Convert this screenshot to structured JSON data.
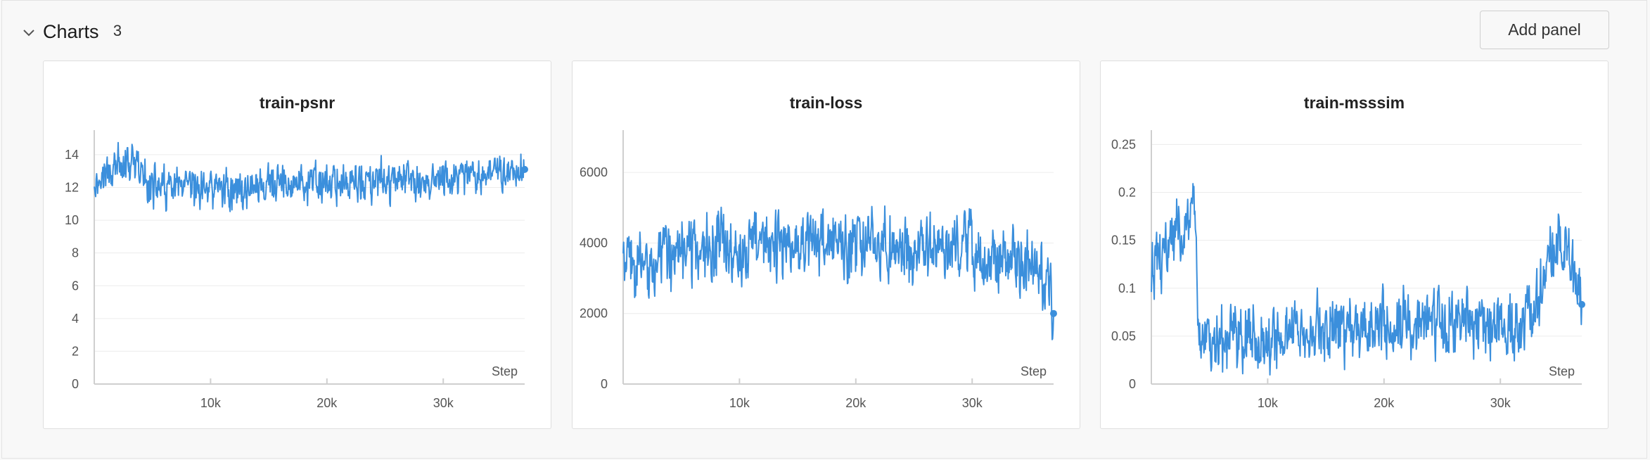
{
  "section": {
    "title": "Charts",
    "count": "3",
    "add_panel_label": "Add panel"
  },
  "colors": {
    "line": "#3b8fdc",
    "grid": "#ececec",
    "axis": "#cfcfcf"
  },
  "icons": {
    "collapse": "chevron-down-icon"
  },
  "chart_data": [
    {
      "type": "line",
      "title": "train-psnr",
      "xlabel": "Step",
      "ylabel": "",
      "xlim": [
        0,
        37000
      ],
      "ylim": [
        0,
        15.5
      ],
      "x_ticks": [
        10000,
        20000,
        30000
      ],
      "x_tick_labels": [
        "10k",
        "20k",
        "30k"
      ],
      "y_ticks": [
        0,
        2,
        4,
        6,
        8,
        10,
        12,
        14
      ],
      "y_tick_labels": [
        "0",
        "2",
        "4",
        "6",
        "8",
        "10",
        "12",
        "14"
      ],
      "grid": true,
      "series": [
        {
          "x": [
            0,
            1000,
            2000,
            3000,
            4000,
            5000,
            6000,
            8000,
            10000,
            12000,
            14000,
            16000,
            18000,
            20000,
            22000,
            24000,
            26000,
            28000,
            30000,
            32000,
            34000,
            35000,
            36000,
            37000
          ],
          "values": [
            12.3,
            12.8,
            13.2,
            13.4,
            12.9,
            12.1,
            11.9,
            11.8,
            12.0,
            11.9,
            12.0,
            12.1,
            12.2,
            12.2,
            12.3,
            12.3,
            12.4,
            12.3,
            12.4,
            12.5,
            12.7,
            12.9,
            13.0,
            13.1
          ],
          "noise": 1.4
        }
      ]
    },
    {
      "type": "line",
      "title": "train-loss",
      "xlabel": "Step",
      "ylabel": "",
      "xlim": [
        0,
        37000
      ],
      "ylim": [
        0,
        7200
      ],
      "x_ticks": [
        10000,
        20000,
        30000
      ],
      "x_tick_labels": [
        "10k",
        "20k",
        "30k"
      ],
      "y_ticks": [
        0,
        2000,
        4000,
        6000
      ],
      "y_tick_labels": [
        "0",
        "2000",
        "4000",
        "6000"
      ],
      "grid": true,
      "series": [
        {
          "x": [
            0,
            2000,
            4000,
            6000,
            8000,
            10000,
            12000,
            14000,
            16000,
            18000,
            20000,
            22000,
            24000,
            26000,
            28000,
            30000,
            32000,
            34000,
            36000,
            37000
          ],
          "values": [
            3400,
            3300,
            3700,
            3900,
            3900,
            4000,
            4000,
            3900,
            4000,
            4000,
            4000,
            3900,
            3900,
            3800,
            3800,
            3700,
            3600,
            3400,
            3200,
            2000
          ],
          "noise": 1100
        }
      ]
    },
    {
      "type": "line",
      "title": "train-msssim",
      "xlabel": "Step",
      "ylabel": "",
      "xlim": [
        0,
        37000
      ],
      "ylim": [
        0,
        0.265
      ],
      "x_ticks": [
        10000,
        20000,
        30000
      ],
      "x_tick_labels": [
        "10k",
        "20k",
        "30k"
      ],
      "y_ticks": [
        0,
        0.05,
        0.1,
        0.15,
        0.2,
        0.25
      ],
      "y_tick_labels": [
        "0",
        "0.05",
        "0.1",
        "0.15",
        "0.2",
        "0.25"
      ],
      "grid": true,
      "series": [
        {
          "x": [
            0,
            1000,
            2000,
            3000,
            3800,
            4000,
            6000,
            8000,
            10000,
            12000,
            14000,
            16000,
            18000,
            20000,
            22000,
            24000,
            26000,
            28000,
            30000,
            32000,
            33000,
            34000,
            35000,
            36000,
            37000
          ],
          "values": [
            0.12,
            0.14,
            0.16,
            0.17,
            0.18,
            0.05,
            0.045,
            0.048,
            0.05,
            0.055,
            0.058,
            0.06,
            0.062,
            0.064,
            0.066,
            0.067,
            0.066,
            0.065,
            0.064,
            0.062,
            0.07,
            0.12,
            0.15,
            0.14,
            0.083
          ],
          "noise": 0.04
        }
      ]
    }
  ]
}
